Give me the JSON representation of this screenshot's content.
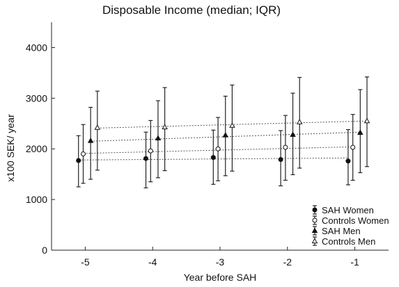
{
  "chart_data": {
    "type": "scatter",
    "title": "Disposable Income (median; IQR)",
    "xlabel": "Year before SAH",
    "ylabel": "x100 SEK/ year",
    "xlim": [
      -5.5,
      -0.5
    ],
    "ylim": [
      0,
      4500
    ],
    "x_ticks": [
      -5,
      -4,
      -3,
      -2,
      -1
    ],
    "x_tick_labels": [
      "-5",
      "-4",
      "-3",
      "-2",
      "-1"
    ],
    "y_ticks": [
      0,
      1000,
      2000,
      3000,
      4000
    ],
    "y_tick_labels": [
      "0",
      "1000",
      "2000",
      "3000",
      "4000"
    ],
    "legend_position": "bottom-right",
    "series": [
      {
        "name": "SAH Women",
        "marker": "filled-circle",
        "x": [
          -5,
          -4,
          -3,
          -2,
          -1
        ],
        "x_offset": -0.1,
        "median": [
          1770,
          1810,
          1830,
          1790,
          1760
        ],
        "q1": [
          1250,
          1230,
          1300,
          1270,
          1290
        ],
        "q3": [
          2260,
          2330,
          2370,
          2360,
          2380
        ],
        "trend": [
          1780,
          1820
        ]
      },
      {
        "name": "Controls Women",
        "marker": "open-circle",
        "x": [
          -5,
          -4,
          -3,
          -2,
          -1
        ],
        "x_offset": -0.03,
        "median": [
          1900,
          1960,
          2000,
          2030,
          2030
        ],
        "q1": [
          1320,
          1350,
          1370,
          1380,
          1380
        ],
        "q3": [
          2480,
          2560,
          2620,
          2660,
          2680
        ],
        "trend": [
          1910,
          2040
        ]
      },
      {
        "name": "SAH Men",
        "marker": "filled-triangle",
        "x": [
          -5,
          -4,
          -3,
          -2,
          -1
        ],
        "x_offset": 0.08,
        "median": [
          2160,
          2210,
          2270,
          2280,
          2320
        ],
        "q1": [
          1400,
          1430,
          1470,
          1490,
          1530
        ],
        "q3": [
          2820,
          2950,
          3040,
          3100,
          3170
        ],
        "trend": [
          2150,
          2330
        ]
      },
      {
        "name": "Controls Men",
        "marker": "open-triangle",
        "x": [
          -5,
          -4,
          -3,
          -2,
          -1
        ],
        "x_offset": 0.18,
        "median": [
          2420,
          2430,
          2460,
          2530,
          2550
        ],
        "q1": [
          1580,
          1570,
          1560,
          1620,
          1650
        ],
        "q3": [
          3140,
          3210,
          3260,
          3410,
          3420
        ],
        "trend": [
          2410,
          2550
        ]
      }
    ]
  }
}
